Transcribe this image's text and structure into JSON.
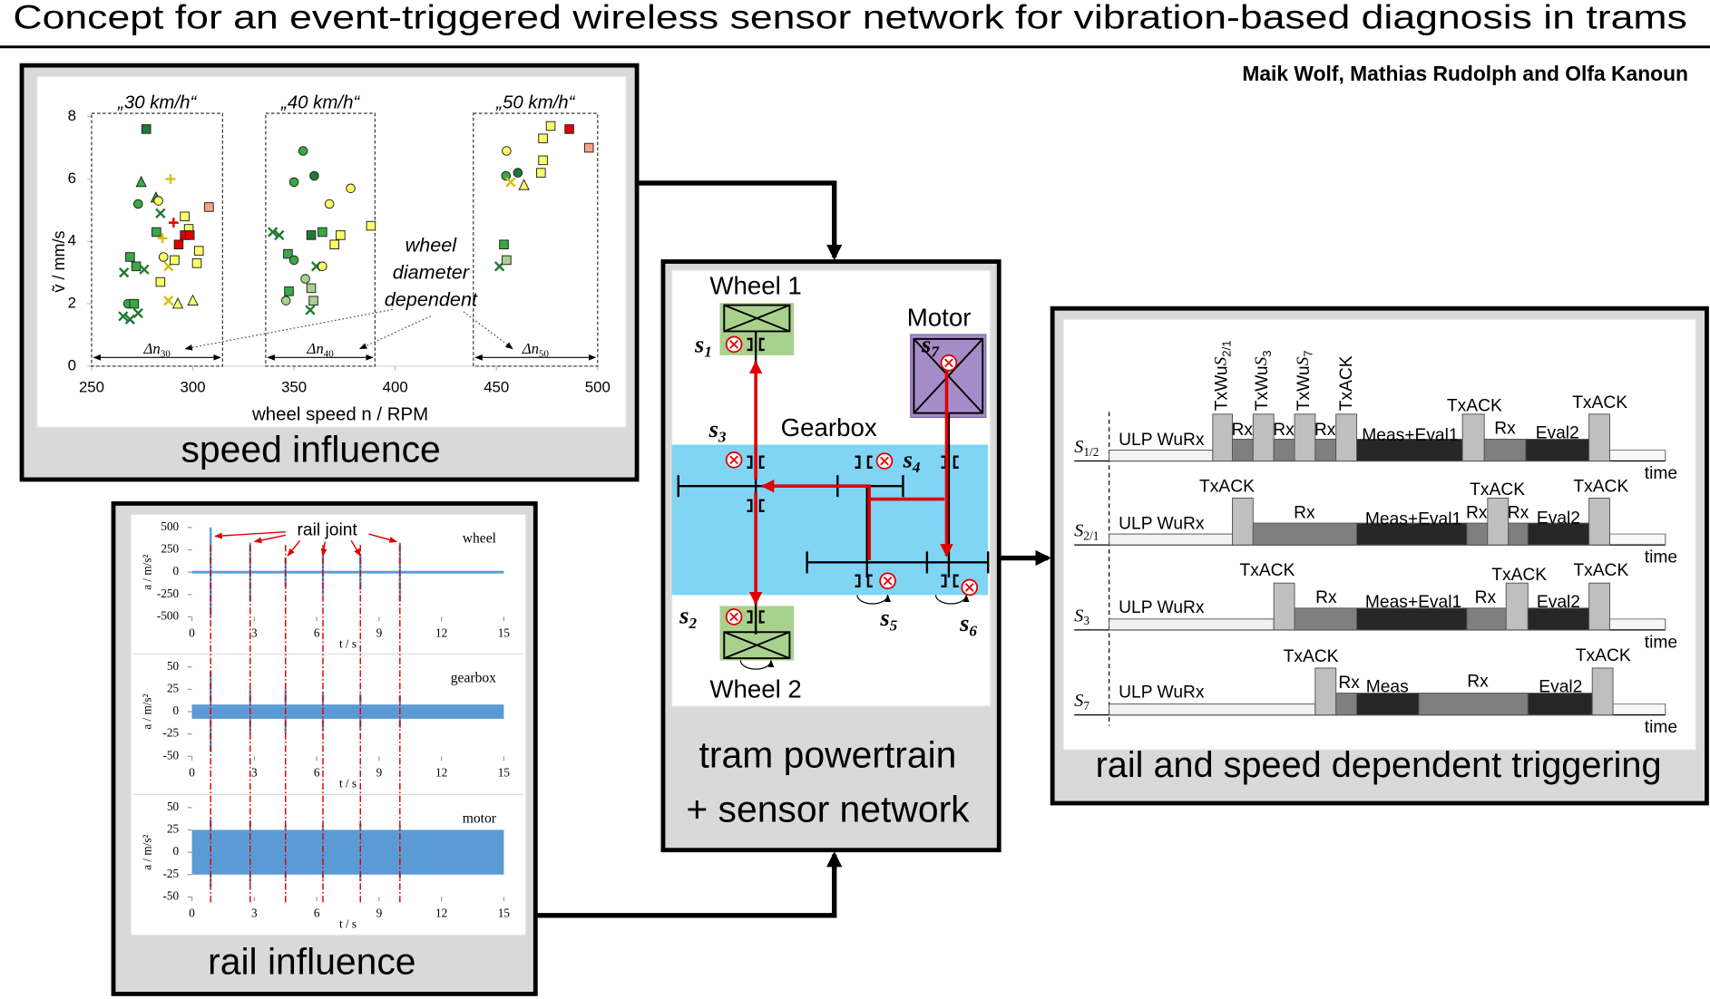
{
  "title": "Concept for an event-triggered wireless sensor network for vibration-based diagnosis in trams",
  "authors": "Maik Wolf, Mathias Rudolph and Olfa Kanoun",
  "speed_influence": {
    "caption": "speed influence",
    "chart": {
      "type": "scatter",
      "xlabel": "wheel speed n / RPM",
      "ylabel": "ṽ / mm/s",
      "xlim": [
        250,
        500
      ],
      "ylim": [
        0,
        8
      ],
      "xticks": [
        250,
        300,
        350,
        400,
        450,
        500
      ],
      "yticks": [
        0,
        2,
        4,
        6,
        8
      ],
      "groups": [
        {
          "label": "„30 km/h“",
          "range": [
            250,
            314.7
          ],
          "delta": {
            "symbol": "Δn",
            "sub": "30"
          }
        },
        {
          "label": "„40 km/h“",
          "range": [
            336,
            390
          ],
          "delta": {
            "symbol": "Δn",
            "sub": "40"
          }
        },
        {
          "label": "„50 km/h“",
          "range": [
            438.6,
            500
          ],
          "delta": {
            "symbol": "Δn",
            "sub": "50"
          }
        }
      ],
      "annotation": [
        "wheel",
        "diameter",
        "dependent"
      ],
      "points": [
        {
          "x": 277,
          "y": 7.6,
          "marker": "square",
          "color": "#1e7b34"
        },
        {
          "x": 274.5,
          "y": 5.9,
          "marker": "triangle",
          "color": "#3aa845"
        },
        {
          "x": 273,
          "y": 5.2,
          "marker": "circle",
          "color": "#3aa845"
        },
        {
          "x": 281.8,
          "y": 5.4,
          "marker": "triangle",
          "color": "#3aa845"
        },
        {
          "x": 284,
          "y": 4.9,
          "marker": "x",
          "color": "#1e7b34"
        },
        {
          "x": 282,
          "y": 4.3,
          "marker": "square",
          "color": "#3aa845"
        },
        {
          "x": 285,
          "y": 4.1,
          "marker": "plus",
          "color": "#d4c000"
        },
        {
          "x": 269,
          "y": 3.5,
          "marker": "square",
          "color": "#3aa845"
        },
        {
          "x": 272,
          "y": 3.2,
          "marker": "square",
          "color": "#3aa845"
        },
        {
          "x": 266,
          "y": 3.0,
          "marker": "x",
          "color": "#1e7b34"
        },
        {
          "x": 276,
          "y": 3.1,
          "marker": "x",
          "color": "#1e7b34"
        },
        {
          "x": 285.5,
          "y": 3.5,
          "marker": "circle",
          "color": "#ffff66"
        },
        {
          "x": 288,
          "y": 3.2,
          "marker": "x",
          "color": "#d4c000"
        },
        {
          "x": 291,
          "y": 3.4,
          "marker": "square",
          "color": "#ffff66"
        },
        {
          "x": 284,
          "y": 2.7,
          "marker": "square",
          "color": "#ffff66"
        },
        {
          "x": 296,
          "y": 4.8,
          "marker": "square",
          "color": "#ffff66"
        },
        {
          "x": 298,
          "y": 4.4,
          "marker": "square",
          "color": "#ffff66"
        },
        {
          "x": 296,
          "y": 4.2,
          "marker": "square",
          "color": "#e00000"
        },
        {
          "x": 298.5,
          "y": 4.2,
          "marker": "square",
          "color": "#e00000"
        },
        {
          "x": 308,
          "y": 5.1,
          "marker": "square",
          "color": "#f4a582"
        },
        {
          "x": 303,
          "y": 3.7,
          "marker": "square",
          "color": "#ffff66"
        },
        {
          "x": 302,
          "y": 3.3,
          "marker": "square",
          "color": "#ffff66"
        },
        {
          "x": 268,
          "y": 2.0,
          "marker": "circle",
          "color": "#3aa845"
        },
        {
          "x": 271,
          "y": 2.0,
          "marker": "square",
          "color": "#3aa845"
        },
        {
          "x": 265.6,
          "y": 1.6,
          "marker": "x",
          "color": "#1e7b34"
        },
        {
          "x": 269,
          "y": 1.5,
          "marker": "x",
          "color": "#1e7b34"
        },
        {
          "x": 273,
          "y": 1.7,
          "marker": "x",
          "color": "#1e7b34"
        },
        {
          "x": 288,
          "y": 2.1,
          "marker": "x",
          "color": "#d4c000"
        },
        {
          "x": 292.6,
          "y": 2.0,
          "marker": "triangle",
          "color": "#ffff66"
        },
        {
          "x": 300,
          "y": 2.1,
          "marker": "triangle",
          "color": "#ffff66"
        },
        {
          "x": 289,
          "y": 6.0,
          "marker": "plus",
          "color": "#d4c000"
        },
        {
          "x": 283,
          "y": 5.3,
          "marker": "circle",
          "color": "#ffff66"
        },
        {
          "x": 290.5,
          "y": 4.6,
          "marker": "plus",
          "color": "#e00000"
        },
        {
          "x": 293,
          "y": 3.9,
          "marker": "square",
          "color": "#e00000"
        },
        {
          "x": 354.5,
          "y": 6.9,
          "marker": "circle",
          "color": "#3aa845"
        },
        {
          "x": 360,
          "y": 6.1,
          "marker": "circle",
          "color": "#1e7b34"
        },
        {
          "x": 350,
          "y": 5.9,
          "marker": "circle",
          "color": "#3aa845"
        },
        {
          "x": 367.5,
          "y": 5.2,
          "marker": "circle",
          "color": "#ffff66"
        },
        {
          "x": 378,
          "y": 5.7,
          "marker": "circle",
          "color": "#ffff66"
        },
        {
          "x": 339.5,
          "y": 4.3,
          "marker": "x",
          "color": "#1e7b34"
        },
        {
          "x": 342.7,
          "y": 4.2,
          "marker": "x",
          "color": "#1e7b34"
        },
        {
          "x": 358.5,
          "y": 4.2,
          "marker": "square",
          "color": "#1e7b34"
        },
        {
          "x": 364,
          "y": 4.3,
          "marker": "square",
          "color": "#3aa845"
        },
        {
          "x": 373,
          "y": 4.2,
          "marker": "square",
          "color": "#ffff66"
        },
        {
          "x": 388,
          "y": 4.5,
          "marker": "square",
          "color": "#ffff66"
        },
        {
          "x": 370,
          "y": 3.9,
          "marker": "square",
          "color": "#ffff66"
        },
        {
          "x": 347,
          "y": 3.6,
          "marker": "square",
          "color": "#3aa845"
        },
        {
          "x": 350,
          "y": 3.4,
          "marker": "circle",
          "color": "#3aa845"
        },
        {
          "x": 361,
          "y": 3.2,
          "marker": "x",
          "color": "#1e7b34"
        },
        {
          "x": 355.6,
          "y": 2.8,
          "marker": "circle",
          "color": "#a9d18e"
        },
        {
          "x": 364,
          "y": 3.2,
          "marker": "circle",
          "color": "#ffff66"
        },
        {
          "x": 347.5,
          "y": 2.4,
          "marker": "square",
          "color": "#3aa845"
        },
        {
          "x": 358.5,
          "y": 2.5,
          "marker": "square",
          "color": "#a9d18e"
        },
        {
          "x": 359.6,
          "y": 2.1,
          "marker": "square",
          "color": "#a9d18e"
        },
        {
          "x": 358,
          "y": 1.8,
          "marker": "x",
          "color": "#1e7b34"
        },
        {
          "x": 346,
          "y": 2.1,
          "marker": "circle",
          "color": "#a9d18e"
        },
        {
          "x": 455,
          "y": 6.9,
          "marker": "circle",
          "color": "#ffff66"
        },
        {
          "x": 473,
          "y": 7.3,
          "marker": "square",
          "color": "#ffff66"
        },
        {
          "x": 486,
          "y": 7.6,
          "marker": "square",
          "color": "#e00000"
        },
        {
          "x": 476.8,
          "y": 7.7,
          "marker": "square",
          "color": "#ffff66"
        },
        {
          "x": 495.7,
          "y": 7.0,
          "marker": "square",
          "color": "#f4a582"
        },
        {
          "x": 473,
          "y": 6.6,
          "marker": "square",
          "color": "#ffff66"
        },
        {
          "x": 472,
          "y": 6.2,
          "marker": "square",
          "color": "#ffff66"
        },
        {
          "x": 454.7,
          "y": 6.1,
          "marker": "circle",
          "color": "#3aa845"
        },
        {
          "x": 457,
          "y": 5.9,
          "marker": "x",
          "color": "#d4c000"
        },
        {
          "x": 460.6,
          "y": 6.2,
          "marker": "circle",
          "color": "#1e7b34"
        },
        {
          "x": 463.6,
          "y": 5.8,
          "marker": "triangle",
          "color": "#ffff66"
        },
        {
          "x": 453.7,
          "y": 3.9,
          "marker": "square",
          "color": "#3aa845"
        },
        {
          "x": 451.5,
          "y": 3.2,
          "marker": "x",
          "color": "#1e7b34"
        },
        {
          "x": 455,
          "y": 3.4,
          "marker": "square",
          "color": "#a9d18e"
        }
      ]
    }
  },
  "rail_influence": {
    "caption": "rail influence",
    "annotation": "rail joint",
    "xlabel": "t / s",
    "ylabel": "a / m/s²",
    "xlim": [
      0,
      15
    ],
    "xticks": [
      0,
      3,
      6,
      9,
      12,
      15
    ],
    "color": "#5b9bd5",
    "joints": [
      0.9,
      2.8,
      4.5,
      6.3,
      8.1,
      10.0
    ],
    "plots": [
      {
        "name": "wheel",
        "ylim": [
          -500,
          500
        ],
        "yticks": [
          500,
          250,
          0,
          -250,
          -500
        ],
        "noise": 15,
        "spikes": [
          {
            "t": 0.9,
            "a": 500
          },
          {
            "t": 2.8,
            "a": 330
          },
          {
            "t": 4.5,
            "a": 160
          },
          {
            "t": 6.3,
            "a": 250
          },
          {
            "t": 8.1,
            "a": 200
          },
          {
            "t": 10.0,
            "a": 330
          }
        ]
      },
      {
        "name": "gearbox",
        "ylim": [
          -50,
          50
        ],
        "yticks": [
          50,
          25,
          0,
          -25,
          -50
        ],
        "noise": 8,
        "spikes": [
          {
            "t": 0.9,
            "a": 45
          },
          {
            "t": 2.8,
            "a": 25
          },
          {
            "t": 4.5,
            "a": 25
          },
          {
            "t": 6.3,
            "a": 22
          },
          {
            "t": 8.1,
            "a": 20
          },
          {
            "t": 10.0,
            "a": 18
          }
        ]
      },
      {
        "name": "motor",
        "ylim": [
          -50,
          50
        ],
        "yticks": [
          50,
          25,
          0,
          -25,
          -50
        ],
        "noise": 25,
        "spikes": [
          {
            "t": 0.9,
            "a": 38
          },
          {
            "t": 2.8,
            "a": 35
          },
          {
            "t": 4.5,
            "a": 30
          },
          {
            "t": 6.3,
            "a": 30
          },
          {
            "t": 8.1,
            "a": 32
          },
          {
            "t": 10.0,
            "a": 30
          }
        ]
      }
    ]
  },
  "powertrain": {
    "caption": [
      "tram powertrain",
      "+ sensor network"
    ],
    "wheel1": "Wheel 1",
    "wheel2": "Wheel 2",
    "motor": "Motor",
    "gearbox": "Gearbox",
    "sensors": [
      {
        "symbol": "s",
        "sub": "1"
      },
      {
        "symbol": "s",
        "sub": "2"
      },
      {
        "symbol": "s",
        "sub": "3"
      },
      {
        "symbol": "s",
        "sub": "4"
      },
      {
        "symbol": "s",
        "sub": "5"
      },
      {
        "symbol": "s",
        "sub": "6"
      },
      {
        "symbol": "s",
        "sub": "7"
      }
    ]
  },
  "triggering": {
    "caption": "rail and speed dependent triggering",
    "time_label": "time",
    "rows": [
      {
        "node": {
          "symbol": "S",
          "sub": "1/2"
        },
        "phases": [
          {
            "label": "ULP WuRx",
            "kind": "sleep"
          },
          {
            "label": {
              "text": "TxWu",
              "symbol": "S",
              "sub": "2/1"
            },
            "kind": "tx"
          },
          {
            "label": "Rx",
            "kind": "rx"
          },
          {
            "label": {
              "text": "TxWu",
              "symbol": "S",
              "sub": "3"
            },
            "kind": "tx"
          },
          {
            "label": "Rx",
            "kind": "rx"
          },
          {
            "label": {
              "text": "TxWu",
              "symbol": "S",
              "sub": "7"
            },
            "kind": "tx"
          },
          {
            "label": "Rx",
            "kind": "rx"
          },
          {
            "label": "TxACK",
            "kind": "tx"
          },
          {
            "label": "Meas+Eval1",
            "kind": "proc"
          },
          {
            "label": "TxACK",
            "kind": "tx"
          },
          {
            "label": "Rx",
            "kind": "rx"
          },
          {
            "label": "Eval2",
            "kind": "proc"
          },
          {
            "label": "TxACK",
            "kind": "tx"
          }
        ]
      },
      {
        "node": {
          "symbol": "S",
          "sub": "2/1"
        },
        "phases": [
          {
            "label": "ULP WuRx",
            "kind": "sleep"
          },
          {
            "label": "TxACK",
            "kind": "tx"
          },
          {
            "label": "Rx",
            "kind": "rx"
          },
          {
            "label": "Meas+Eval1",
            "kind": "proc"
          },
          {
            "label": "Rx",
            "kind": "rx"
          },
          {
            "label": "TxACK",
            "kind": "tx"
          },
          {
            "label": "Rx",
            "kind": "rx"
          },
          {
            "label": "Eval2",
            "kind": "proc"
          },
          {
            "label": "TxACK",
            "kind": "tx"
          }
        ]
      },
      {
        "node": {
          "symbol": "S",
          "sub": "3"
        },
        "phases": [
          {
            "label": "ULP WuRx",
            "kind": "sleep"
          },
          {
            "label": "TxACK",
            "kind": "tx"
          },
          {
            "label": "Rx",
            "kind": "rx"
          },
          {
            "label": "Meas+Eval1",
            "kind": "proc"
          },
          {
            "label": "Rx",
            "kind": "rx"
          },
          {
            "label": "TxACK",
            "kind": "tx"
          },
          {
            "label": "Eval2",
            "kind": "proc"
          },
          {
            "label": "TxACK",
            "kind": "tx"
          }
        ]
      },
      {
        "node": {
          "symbol": "S",
          "sub": "7"
        },
        "phases": [
          {
            "label": "ULP WuRx",
            "kind": "sleep"
          },
          {
            "label": "TxACK",
            "kind": "tx"
          },
          {
            "label": "Rx",
            "kind": "rx"
          },
          {
            "label": "Meas",
            "kind": "proc"
          },
          {
            "label": "Rx",
            "kind": "rx"
          },
          {
            "label": "Eval2",
            "kind": "proc"
          },
          {
            "label": "TxACK",
            "kind": "tx"
          }
        ]
      }
    ]
  }
}
